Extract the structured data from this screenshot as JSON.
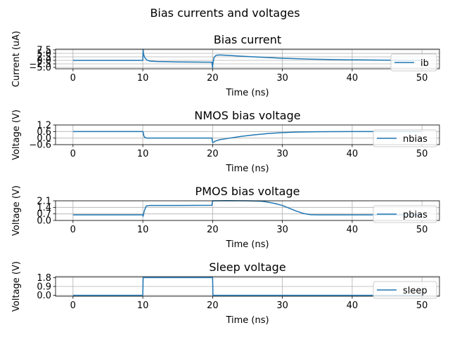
{
  "figure": {
    "suptitle": "Bias currents and voltages"
  },
  "chart_data": [
    {
      "type": "line",
      "title": "Bias current",
      "xlabel": "Time (ns)",
      "ylabel": "Current (uA)",
      "xlim": [
        -2.5,
        52.5
      ],
      "ylim": [
        -6.0,
        8.0
      ],
      "xticks": [
        0,
        10,
        20,
        30,
        40,
        50
      ],
      "xtick_labels": [
        "0",
        "10",
        "20",
        "30",
        "40",
        "50"
      ],
      "yticks": [
        -5.0,
        -2.5,
        0.0,
        2.5,
        5.0,
        7.5
      ],
      "ytick_labels": [
        "−5.0",
        "−2.5",
        "0.0",
        "2.5",
        "5.0",
        "7.5"
      ],
      "grid": true,
      "legend_position": "right",
      "series": [
        {
          "name": "ib",
          "color": "#1f77b4",
          "x": [
            0,
            10,
            10.05,
            10.1,
            10.3,
            10.6,
            11,
            12,
            13,
            15,
            17,
            19.9,
            20,
            20.02,
            20.2,
            20.5,
            21,
            22,
            24,
            26,
            28,
            30,
            32,
            34,
            36,
            38,
            40,
            42,
            44,
            46,
            48,
            50
          ],
          "y": [
            0.0,
            0.0,
            7.8,
            4.5,
            1.8,
            0.2,
            -0.5,
            -0.8,
            -0.9,
            -1.1,
            -1.2,
            -1.3,
            -5.3,
            -3.0,
            2.0,
            3.6,
            3.9,
            3.6,
            3.0,
            2.5,
            2.0,
            1.5,
            1.2,
            0.9,
            0.7,
            0.5,
            0.4,
            0.3,
            0.2,
            0.1,
            0.05,
            0.0
          ]
        }
      ]
    },
    {
      "type": "line",
      "title": "NMOS bias voltage",
      "xlabel": "Time (ns)",
      "ylabel": "Voltage (V)",
      "xlim": [
        -2.5,
        52.5
      ],
      "ylim": [
        -0.6,
        1.2
      ],
      "xticks": [
        0,
        10,
        20,
        30,
        40,
        50
      ],
      "xtick_labels": [
        "0",
        "10",
        "20",
        "30",
        "40",
        "50"
      ],
      "yticks": [
        -0.6,
        0.0,
        0.6,
        1.2
      ],
      "ytick_labels": [
        "−0.6",
        "0.0",
        "0.6",
        "1.2"
      ],
      "grid": true,
      "legend_position": "right",
      "series": [
        {
          "name": "nbias",
          "color": "#1f77b4",
          "x": [
            0,
            10,
            10.05,
            10.15,
            10.3,
            10.6,
            11,
            15,
            19.9,
            20,
            20.1,
            20.3,
            21,
            22,
            24,
            26,
            28,
            30,
            32,
            35,
            40,
            45,
            50
          ],
          "y": [
            0.6,
            0.6,
            0.55,
            0.2,
            0.05,
            0.0,
            0.0,
            0.0,
            0.0,
            -0.4,
            -0.4,
            -0.3,
            -0.15,
            -0.05,
            0.15,
            0.3,
            0.42,
            0.5,
            0.55,
            0.58,
            0.6,
            0.6,
            0.6
          ]
        }
      ]
    },
    {
      "type": "line",
      "title": "PMOS bias voltage",
      "xlabel": "Time (ns)",
      "ylabel": "Voltage (V)",
      "xlim": [
        -2.5,
        52.5
      ],
      "ylim": [
        0.0,
        2.1
      ],
      "xticks": [
        0,
        10,
        20,
        30,
        40,
        50
      ],
      "xtick_labels": [
        "0",
        "10",
        "20",
        "30",
        "40",
        "50"
      ],
      "yticks": [
        0.0,
        0.7,
        1.4,
        2.1
      ],
      "ytick_labels": [
        "0.0",
        "0.7",
        "1.4",
        "2.1"
      ],
      "grid": true,
      "legend_position": "right",
      "series": [
        {
          "name": "pbias",
          "color": "#1f77b4",
          "x": [
            0,
            10,
            10.05,
            10.2,
            10.5,
            11,
            12,
            15,
            19.9,
            20,
            20.2,
            22,
            25,
            27,
            28,
            29,
            30,
            31,
            32,
            33,
            34,
            35,
            40,
            45,
            50
          ],
          "y": [
            0.6,
            0.6,
            0.45,
            1.0,
            1.55,
            1.6,
            1.6,
            1.6,
            1.62,
            2.1,
            2.1,
            2.12,
            2.1,
            2.05,
            1.95,
            1.8,
            1.6,
            1.3,
            1.0,
            0.75,
            0.62,
            0.6,
            0.6,
            0.6,
            0.6
          ]
        }
      ]
    },
    {
      "type": "line",
      "title": "Sleep voltage",
      "xlabel": "Time (ns)",
      "ylabel": "Voltage (V)",
      "xlim": [
        -2.5,
        52.5
      ],
      "ylim": [
        -0.1,
        1.9
      ],
      "xticks": [
        0,
        10,
        20,
        30,
        40,
        50
      ],
      "xtick_labels": [
        "0",
        "10",
        "20",
        "30",
        "40",
        "50"
      ],
      "yticks": [
        0.0,
        0.9,
        1.8
      ],
      "ytick_labels": [
        "0.0",
        "0.9",
        "1.8"
      ],
      "grid": true,
      "legend_position": "right",
      "series": [
        {
          "name": "sleep",
          "color": "#1f77b4",
          "x": [
            0,
            10,
            10.05,
            20,
            20.05,
            50
          ],
          "y": [
            0.0,
            0.0,
            1.8,
            1.8,
            0.0,
            0.0
          ]
        }
      ]
    }
  ]
}
